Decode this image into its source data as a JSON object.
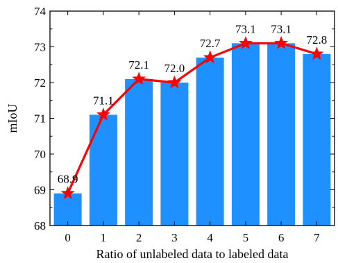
{
  "chart_data": {
    "type": "bar",
    "categories": [
      "0",
      "1",
      "2",
      "3",
      "4",
      "5",
      "6",
      "7"
    ],
    "values": [
      68.9,
      71.1,
      72.1,
      72.0,
      72.7,
      73.1,
      73.1,
      72.8
    ],
    "data_labels": [
      "68.9",
      "71.1",
      "72.1",
      "72.0",
      "72.7",
      "73.1",
      "73.1",
      "72.8"
    ],
    "overlay": {
      "type": "line",
      "marker": "star",
      "values": [
        68.9,
        71.1,
        72.1,
        72.0,
        72.7,
        73.1,
        73.1,
        72.8
      ]
    },
    "xlabel": "Ratio of unlabeled data to labeled data",
    "ylabel": "mIoU",
    "ylim": [
      68,
      74
    ],
    "yticks": [
      "68",
      "69",
      "70",
      "71",
      "72",
      "73",
      "74"
    ],
    "grid": false,
    "legend": "none",
    "colors": {
      "bar": "#1E90FF",
      "line": "#FF0000"
    }
  }
}
